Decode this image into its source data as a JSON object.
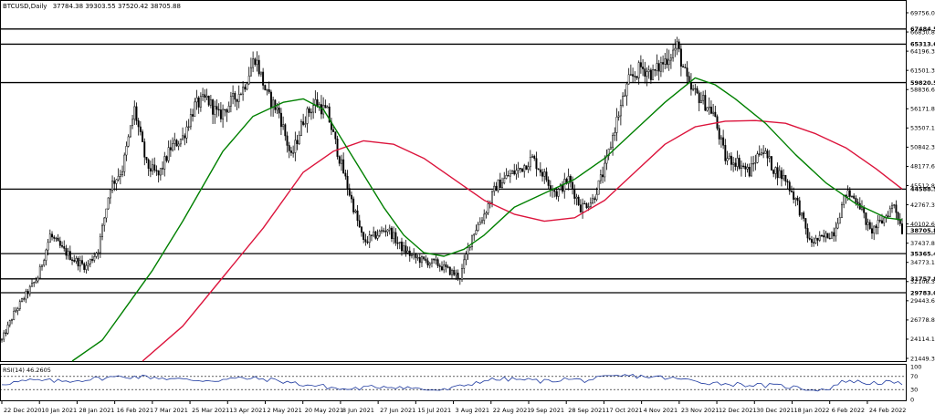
{
  "chart_data": {
    "type": "candlestick",
    "header": {
      "symbol": "BTCUSD,Daily",
      "ohlc": "37784.38 39303.55 37520.42 38705.88"
    },
    "price_axis": {
      "range": [
        20000,
        71500
      ],
      "ticks": [
        "69756.05",
        "66830.85",
        "64196.32",
        "61501.35",
        "58836.60",
        "56171.85",
        "53507.10",
        "50842.35",
        "48177.60",
        "45512.85",
        "42767.34",
        "40102.60",
        "37437.85",
        "34773.10",
        "32108.35",
        "29443.60",
        "26778.85",
        "24114.10",
        "21449.35"
      ]
    },
    "date_axis": {
      "ticks": [
        "22 Dec 2020",
        "10 Jan 2021",
        "28 Jan 2021",
        "16 Feb 2021",
        "7 Mar 2021",
        "25 Mar 2021",
        "13 Apr 2021",
        "2 May 2021",
        "20 May 2021",
        "8 Jun 2021",
        "27 Jun 2021",
        "15 Jul 2021",
        "3 Aug 2021",
        "22 Aug 2021",
        "9 Sep 2021",
        "28 Sep 2021",
        "17 Oct 2021",
        "4 Nov 2021",
        "23 Nov 2021",
        "12 Dec 2021",
        "30 Dec 2021",
        "18 Jan 2022",
        "6 Feb 2022",
        "24 Feb 2022"
      ]
    },
    "levels": [
      {
        "value": 67484.58,
        "label": "67484.58"
      },
      {
        "value": 65313.65,
        "label": "65313.65"
      },
      {
        "value": 59820.52,
        "label": "59820.52"
      },
      {
        "value": 44588.55,
        "label": "44588.55"
      },
      {
        "value": 35365.42,
        "label": "35365.42"
      },
      {
        "value": 31757.81,
        "label": "31757.81"
      },
      {
        "value": 29783.0,
        "label": "29783.00"
      }
    ],
    "current_price": {
      "value": 38705.88,
      "label": "38705.88"
    },
    "price_path": [
      [
        0,
        23000
      ],
      [
        6,
        26800
      ],
      [
        12,
        29500
      ],
      [
        18,
        32000
      ],
      [
        24,
        38000
      ],
      [
        30,
        36000
      ],
      [
        36,
        34500
      ],
      [
        42,
        33500
      ],
      [
        48,
        36000
      ],
      [
        54,
        45000
      ],
      [
        60,
        47500
      ],
      [
        66,
        56000
      ],
      [
        72,
        48000
      ],
      [
        78,
        46500
      ],
      [
        84,
        50500
      ],
      [
        90,
        52000
      ],
      [
        96,
        56500
      ],
      [
        102,
        57500
      ],
      [
        108,
        55000
      ],
      [
        114,
        57000
      ],
      [
        120,
        59000
      ],
      [
        126,
        63500
      ],
      [
        132,
        58000
      ],
      [
        138,
        55500
      ],
      [
        144,
        49000
      ],
      [
        150,
        54500
      ],
      [
        156,
        57000
      ],
      [
        162,
        55500
      ],
      [
        168,
        49000
      ],
      [
        174,
        43000
      ],
      [
        180,
        37000
      ],
      [
        186,
        38000
      ],
      [
        192,
        39000
      ],
      [
        198,
        36500
      ],
      [
        204,
        35000
      ],
      [
        210,
        34300
      ],
      [
        216,
        34000
      ],
      [
        222,
        33000
      ],
      [
        228,
        32000
      ],
      [
        234,
        38000
      ],
      [
        240,
        41000
      ],
      [
        246,
        45000
      ],
      [
        252,
        46500
      ],
      [
        258,
        47500
      ],
      [
        264,
        49000
      ],
      [
        270,
        46500
      ],
      [
        276,
        44000
      ],
      [
        282,
        46000
      ],
      [
        288,
        42000
      ],
      [
        294,
        43000
      ],
      [
        300,
        47500
      ],
      [
        306,
        54500
      ],
      [
        312,
        60000
      ],
      [
        318,
        62000
      ],
      [
        324,
        61000
      ],
      [
        330,
        63000
      ],
      [
        336,
        65000
      ],
      [
        342,
        59000
      ],
      [
        348,
        57500
      ],
      [
        354,
        55500
      ],
      [
        360,
        49000
      ],
      [
        366,
        48500
      ],
      [
        372,
        47000
      ],
      [
        378,
        50500
      ],
      [
        384,
        47500
      ],
      [
        390,
        46000
      ],
      [
        396,
        42500
      ],
      [
        402,
        37000
      ],
      [
        408,
        37500
      ],
      [
        414,
        38500
      ],
      [
        420,
        44000
      ],
      [
        426,
        43000
      ],
      [
        432,
        38500
      ],
      [
        438,
        40000
      ],
      [
        444,
        42500
      ],
      [
        448,
        38705.88
      ]
    ],
    "sma_green": [
      [
        35,
        20000
      ],
      [
        50,
        23000
      ],
      [
        60,
        27000
      ],
      [
        75,
        33000
      ],
      [
        90,
        40000
      ],
      [
        110,
        50000
      ],
      [
        125,
        55000
      ],
      [
        140,
        57000
      ],
      [
        150,
        57500
      ],
      [
        160,
        56000
      ],
      [
        175,
        49000
      ],
      [
        190,
        42000
      ],
      [
        200,
        38000
      ],
      [
        210,
        35500
      ],
      [
        220,
        35000
      ],
      [
        230,
        36000
      ],
      [
        240,
        38000
      ],
      [
        255,
        42000
      ],
      [
        270,
        44000
      ],
      [
        285,
        46000
      ],
      [
        300,
        49000
      ],
      [
        315,
        53000
      ],
      [
        330,
        57000
      ],
      [
        345,
        60500
      ],
      [
        355,
        59500
      ],
      [
        365,
        57500
      ],
      [
        380,
        54000
      ],
      [
        395,
        49500
      ],
      [
        410,
        45500
      ],
      [
        425,
        42500
      ],
      [
        440,
        40500
      ],
      [
        448,
        40200
      ]
    ],
    "sma_red": [
      [
        70,
        20000
      ],
      [
        90,
        25000
      ],
      [
        110,
        32000
      ],
      [
        130,
        39000
      ],
      [
        150,
        47000
      ],
      [
        165,
        50000
      ],
      [
        180,
        51500
      ],
      [
        195,
        51000
      ],
      [
        210,
        49000
      ],
      [
        225,
        46000
      ],
      [
        240,
        43000
      ],
      [
        255,
        41000
      ],
      [
        270,
        40000
      ],
      [
        285,
        40500
      ],
      [
        300,
        43000
      ],
      [
        315,
        47000
      ],
      [
        330,
        51000
      ],
      [
        345,
        53500
      ],
      [
        360,
        54300
      ],
      [
        375,
        54400
      ],
      [
        390,
        54000
      ],
      [
        405,
        52500
      ],
      [
        420,
        50500
      ],
      [
        435,
        47500
      ],
      [
        448,
        44600
      ]
    ],
    "rsi": {
      "label": "RSI(14) 46.2605",
      "levels": [
        "100",
        "70",
        "30",
        "0"
      ],
      "values": [
        [
          0,
          48
        ],
        [
          15,
          58
        ],
        [
          30,
          55
        ],
        [
          45,
          62
        ],
        [
          60,
          70
        ],
        [
          75,
          68
        ],
        [
          90,
          60
        ],
        [
          105,
          58
        ],
        [
          120,
          65
        ],
        [
          130,
          62
        ],
        [
          140,
          55
        ],
        [
          150,
          45
        ],
        [
          160,
          40
        ],
        [
          170,
          30
        ],
        [
          180,
          35
        ],
        [
          190,
          40
        ],
        [
          200,
          38
        ],
        [
          210,
          30
        ],
        [
          220,
          28
        ],
        [
          230,
          42
        ],
        [
          240,
          58
        ],
        [
          250,
          62
        ],
        [
          260,
          60
        ],
        [
          270,
          55
        ],
        [
          280,
          62
        ],
        [
          290,
          58
        ],
        [
          300,
          66
        ],
        [
          310,
          72
        ],
        [
          320,
          70
        ],
        [
          330,
          66
        ],
        [
          340,
          60
        ],
        [
          350,
          52
        ],
        [
          360,
          48
        ],
        [
          370,
          45
        ],
        [
          380,
          42
        ],
        [
          390,
          40
        ],
        [
          400,
          32
        ],
        [
          410,
          30
        ],
        [
          420,
          58
        ],
        [
          430,
          50
        ],
        [
          440,
          52
        ],
        [
          448,
          46
        ]
      ]
    },
    "colors": {
      "up_candle": "#ffffff",
      "down_candle": "#000000",
      "sma_short": "#008000",
      "sma_long": "#dc143c",
      "rsi_line": "#1e3aa0"
    }
  }
}
